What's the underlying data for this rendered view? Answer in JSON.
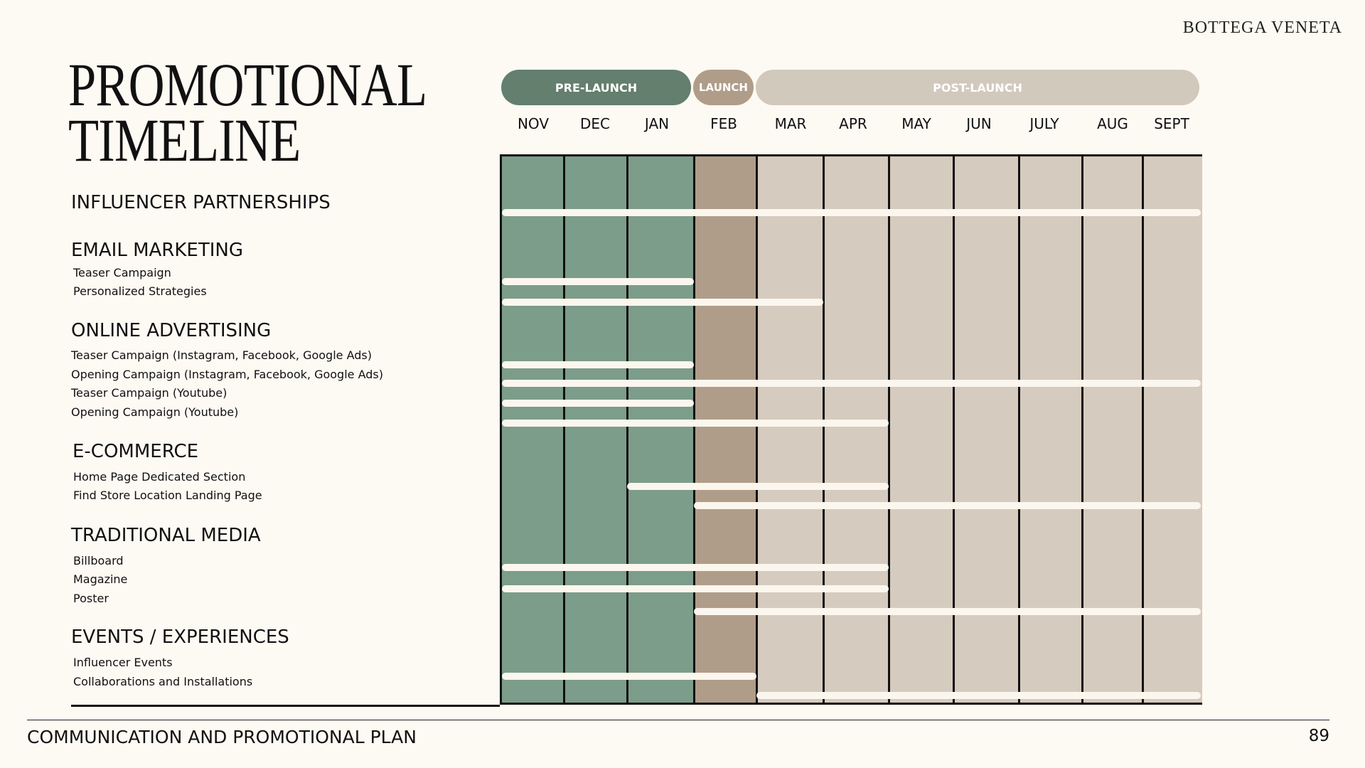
{
  "brand": "BOTTEGA VENETA",
  "title": {
    "line1": "PROMOTIONAL",
    "line2": "TIMELINE"
  },
  "colors": {
    "pre_launch": "#7c9d89",
    "pre_launch_pill": "#647f6d",
    "launch": "#b09d89",
    "post_launch": "#d6cbbf",
    "post_launch_pill": "#d2c9bd",
    "bar": "#fbf6ee"
  },
  "phases": [
    {
      "label": "PRE-LAUNCH",
      "start": 0,
      "end": 3,
      "color": "#647f6d"
    },
    {
      "label": "LAUNCH",
      "start": 3,
      "end": 4,
      "color": "#b09d89"
    },
    {
      "label": "POST-LAUNCH",
      "start": 4,
      "end": 11,
      "color": "#d2c9bd"
    }
  ],
  "months": [
    "NOV",
    "DEC",
    "JAN",
    "FEB",
    "MAR",
    "APR",
    "MAY",
    "JUN",
    "JULY",
    "AUG",
    "SEPT"
  ],
  "sections": [
    {
      "heading": "INFLUENCER PARTNERSHIPS",
      "bars": [
        {
          "start": 0,
          "end": 11
        }
      ],
      "items": []
    },
    {
      "heading": "EMAIL MARKETING",
      "items": [
        {
          "label": "Teaser Campaign",
          "start": 0,
          "end": 3
        },
        {
          "label": "Personalized Strategies",
          "start": 0,
          "end": 5
        }
      ]
    },
    {
      "heading": "ONLINE ADVERTISING",
      "items": [
        {
          "label": "Teaser Campaign (Instagram, Facebook, Google Ads)",
          "start": 0,
          "end": 3
        },
        {
          "label": "Opening Campaign (Instagram, Facebook, Google Ads)",
          "start": 0,
          "end": 11
        },
        {
          "label": "Teaser Campaign (Youtube)",
          "start": 0,
          "end": 3
        },
        {
          "label": "Opening Campaign (Youtube)",
          "start": 0,
          "end": 6
        }
      ]
    },
    {
      "heading": "E-COMMERCE",
      "items": [
        {
          "label": "Home Page Dedicated Section",
          "start": 2,
          "end": 6
        },
        {
          "label": "Find Store Location Landing Page",
          "start": 3,
          "end": 11
        }
      ]
    },
    {
      "heading": "TRADITIONAL MEDIA",
      "items": [
        {
          "label": "Billboard",
          "start": 0,
          "end": 6
        },
        {
          "label": "Magazine",
          "start": 0,
          "end": 6
        },
        {
          "label": "Poster",
          "start": 3,
          "end": 11
        }
      ]
    },
    {
      "heading": "EVENTS / EXPERIENCES",
      "items": [
        {
          "label": "Influencer Events",
          "start": 0,
          "end": 4
        },
        {
          "label": "Collaborations and Installations",
          "start": 4,
          "end": 11
        }
      ]
    }
  ],
  "footer": {
    "text": "COMMUNICATION AND PROMOTIONAL PLAN",
    "page": "89"
  }
}
